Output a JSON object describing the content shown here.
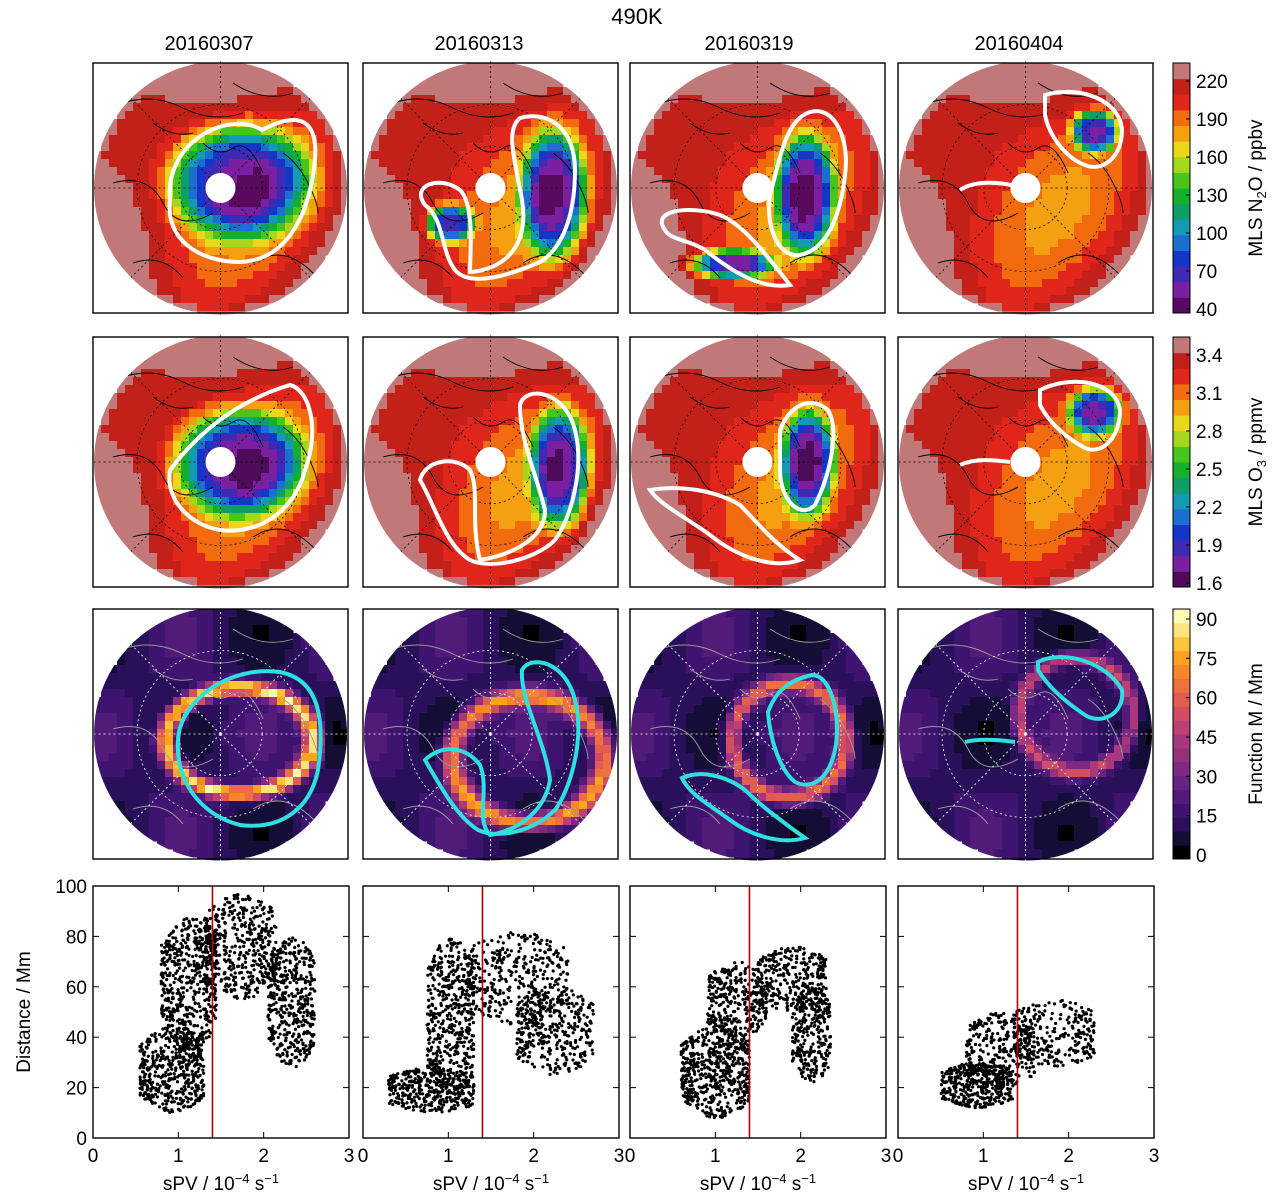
{
  "figure": {
    "title": "490K",
    "dates": [
      "20160307",
      "20160313",
      "20160319",
      "20160404"
    ]
  },
  "colorbars": [
    {
      "label_parts": [
        "MLS N",
        "2",
        "O / ppbv"
      ],
      "ticks": [
        "40",
        "70",
        "100",
        "130",
        "160",
        "190",
        "220"
      ],
      "colors": [
        "#5a0a5e",
        "#7b1fa2",
        "#3f2bb3",
        "#1436c9",
        "#1b6fd1",
        "#149bb3",
        "#0e9e6a",
        "#12b02c",
        "#46c51a",
        "#a6d71c",
        "#ecd81b",
        "#f5a011",
        "#f26b0f",
        "#e0261a",
        "#c3201a",
        "#c07878"
      ]
    },
    {
      "label_parts": [
        "MLS O",
        "3",
        " / ppmv"
      ],
      "ticks": [
        "1.6",
        "1.9",
        "2.2",
        "2.5",
        "2.8",
        "3.1",
        "3.4"
      ],
      "colors": [
        "#4e0b59",
        "#7b1fa2",
        "#3f2bb3",
        "#1436c9",
        "#1b6fd1",
        "#149bb3",
        "#0e9e6a",
        "#12b02c",
        "#46c51a",
        "#a6d71c",
        "#ecd81b",
        "#f5a011",
        "#f26b0f",
        "#e0261a",
        "#c3201a",
        "#c07878"
      ]
    },
    {
      "label_parts": [
        "Function M / Mm"
      ],
      "ticks": [
        "0",
        "15",
        "30",
        "45",
        "60",
        "75",
        "90"
      ],
      "colors": [
        "#000004",
        "#140d35",
        "#2a0f5a",
        "#3e1470",
        "#531b79",
        "#68227f",
        "#7d2a80",
        "#93317d",
        "#a8387a",
        "#bd4073",
        "#d04d64",
        "#e15d52",
        "#ee7040",
        "#f7862d",
        "#fba21e",
        "#fcc43a",
        "#fbe37d",
        "#fbfbb8"
      ]
    }
  ],
  "scatter_axes": {
    "xlabel_parts": [
      "sPV / 10",
      "−4",
      " s",
      "−1"
    ],
    "ylabel": "Distance / Mm",
    "xticks": [
      "0",
      "1",
      "2",
      "3"
    ],
    "yticks": [
      "0",
      "20",
      "40",
      "60",
      "80",
      "100"
    ]
  },
  "chart_data": [
    {
      "type": "heatmap",
      "row": 1,
      "panel": "20160307",
      "quantity": "MLS N2O",
      "units": "ppbv",
      "color_range": [
        40,
        235
      ],
      "field": {
        "mode": "vortex",
        "low": 55,
        "vortex": [
          [
            0.15,
            -0.05,
            0.6,
            0.48
          ]
        ]
      }
    },
    {
      "type": "heatmap",
      "row": 1,
      "panel": "20160313",
      "quantity": "MLS N2O",
      "units": "ppbv",
      "color_range": [
        40,
        235
      ],
      "field": {
        "mode": "vortex",
        "low": 60,
        "vortex": [
          [
            0.5,
            0.05,
            0.28,
            0.55
          ],
          [
            -0.32,
            0.28,
            0.2,
            0.16
          ]
        ]
      }
    },
    {
      "type": "heatmap",
      "row": 1,
      "panel": "20160319",
      "quantity": "MLS N2O",
      "units": "ppbv",
      "color_range": [
        40,
        235
      ],
      "field": {
        "mode": "vortex",
        "low": 65,
        "vortex": [
          [
            0.38,
            0.05,
            0.25,
            0.52
          ],
          [
            -0.2,
            0.6,
            0.35,
            0.12
          ]
        ]
      }
    },
    {
      "type": "heatmap",
      "row": 1,
      "panel": "20160404",
      "quantity": "MLS N2O",
      "units": "ppbv",
      "color_range": [
        40,
        235
      ],
      "field": {
        "mode": "vortex",
        "low": 80,
        "vortex": [
          [
            0.55,
            -0.45,
            0.2,
            0.18
          ]
        ]
      }
    },
    {
      "type": "heatmap",
      "row": 2,
      "panel": "20160307",
      "quantity": "MLS O3",
      "units": "ppmv",
      "color_range": [
        1.6,
        3.6
      ],
      "field": {
        "mode": "vortex",
        "low": 2.0,
        "vortex": [
          [
            0.15,
            0.0,
            0.55,
            0.45
          ]
        ]
      }
    },
    {
      "type": "heatmap",
      "row": 2,
      "panel": "20160313",
      "quantity": "MLS O3",
      "units": "ppmv",
      "color_range": [
        1.6,
        3.6
      ],
      "field": {
        "mode": "vortex",
        "low": 2.0,
        "vortex": [
          [
            0.55,
            0.05,
            0.25,
            0.5
          ]
        ]
      }
    },
    {
      "type": "heatmap",
      "row": 2,
      "panel": "20160319",
      "quantity": "MLS O3",
      "units": "ppmv",
      "color_range": [
        1.6,
        3.6
      ],
      "field": {
        "mode": "vortex",
        "low": 1.9,
        "vortex": [
          [
            0.4,
            0.0,
            0.22,
            0.45
          ]
        ]
      }
    },
    {
      "type": "heatmap",
      "row": 2,
      "panel": "20160404",
      "quantity": "MLS O3",
      "units": "ppmv",
      "color_range": [
        1.6,
        3.6
      ],
      "field": {
        "mode": "vortex",
        "low": 2.0,
        "vortex": [
          [
            0.55,
            -0.4,
            0.22,
            0.2
          ]
        ]
      }
    },
    {
      "type": "heatmap",
      "row": 3,
      "panel": "20160307",
      "quantity": "Function M",
      "units": "Mm",
      "color_range": [
        0,
        100
      ],
      "field": {
        "mode": "ring",
        "rings": [
          [
            0.15,
            0.05,
            0.58,
            0.42,
            0.13,
            80
          ]
        ]
      }
    },
    {
      "type": "heatmap",
      "row": 3,
      "panel": "20160313",
      "quantity": "Function M",
      "units": "Mm",
      "color_range": [
        0,
        100
      ],
      "field": {
        "mode": "ring",
        "rings": [
          [
            0.3,
            0.2,
            0.6,
            0.5,
            0.14,
            65
          ]
        ]
      }
    },
    {
      "type": "heatmap",
      "row": 3,
      "panel": "20160319",
      "quantity": "Function M",
      "units": "Mm",
      "color_range": [
        0,
        100
      ],
      "field": {
        "mode": "ring",
        "rings": [
          [
            0.25,
            0.05,
            0.45,
            0.45,
            0.14,
            55
          ]
        ]
      }
    },
    {
      "type": "heatmap",
      "row": 3,
      "panel": "20160404",
      "quantity": "Function M",
      "units": "Mm",
      "color_range": [
        0,
        100
      ],
      "field": {
        "mode": "ring",
        "rings": [
          [
            0.4,
            -0.15,
            0.45,
            0.45,
            0.12,
            42
          ]
        ]
      }
    },
    {
      "type": "scatter",
      "panel": "20160307",
      "xlim": [
        0,
        3
      ],
      "ylim": [
        0,
        100
      ],
      "sPV_threshold": 1.4,
      "point_clouds": [
        {
          "x": [
            0.55,
            1.3
          ],
          "y": [
            10,
            45
          ],
          "n": 2000
        },
        {
          "x": [
            0.8,
            1.45
          ],
          "y": [
            35,
            88
          ],
          "n": 2000
        },
        {
          "x": [
            1.3,
            2.15
          ],
          "y": [
            55,
            97
          ],
          "n": 1800
        },
        {
          "x": [
            2.05,
            2.6
          ],
          "y": [
            28,
            80
          ],
          "n": 1700
        }
      ]
    },
    {
      "type": "scatter",
      "panel": "20160313",
      "xlim": [
        0,
        3
      ],
      "ylim": [
        0,
        100
      ],
      "sPV_threshold": 1.4,
      "point_clouds": [
        {
          "x": [
            0.3,
            1.3
          ],
          "y": [
            10,
            28
          ],
          "n": 1400
        },
        {
          "x": [
            0.75,
            1.3
          ],
          "y": [
            15,
            80
          ],
          "n": 1900
        },
        {
          "x": [
            1.2,
            2.4
          ],
          "y": [
            45,
            82
          ],
          "n": 1500
        },
        {
          "x": [
            1.8,
            2.7
          ],
          "y": [
            25,
            60
          ],
          "n": 1400
        }
      ]
    },
    {
      "type": "scatter",
      "panel": "20160319",
      "xlim": [
        0,
        3
      ],
      "ylim": [
        0,
        100
      ],
      "sPV_threshold": 1.4,
      "point_clouds": [
        {
          "x": [
            0.6,
            1.4
          ],
          "y": [
            8,
            45
          ],
          "n": 2200
        },
        {
          "x": [
            0.9,
            1.6
          ],
          "y": [
            40,
            70
          ],
          "n": 1300
        },
        {
          "x": [
            1.5,
            2.3
          ],
          "y": [
            50,
            76
          ],
          "n": 1200
        },
        {
          "x": [
            1.9,
            2.35
          ],
          "y": [
            22,
            60
          ],
          "n": 1100
        }
      ]
    },
    {
      "type": "scatter",
      "panel": "20160404",
      "xlim": [
        0,
        3
      ],
      "ylim": [
        0,
        100
      ],
      "sPV_threshold": 1.4,
      "point_clouds": [
        {
          "x": [
            0.5,
            1.35
          ],
          "y": [
            12,
            30
          ],
          "n": 1500
        },
        {
          "x": [
            0.8,
            1.6
          ],
          "y": [
            20,
            50
          ],
          "n": 1200
        },
        {
          "x": [
            1.35,
            2.3
          ],
          "y": [
            28,
            55
          ],
          "n": 1100
        }
      ]
    }
  ]
}
